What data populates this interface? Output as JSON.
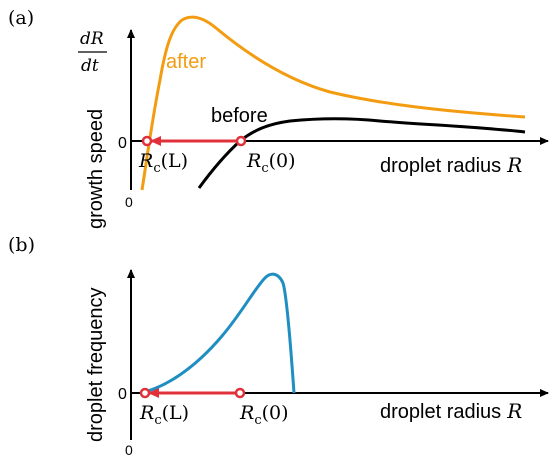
{
  "panels": [
    {
      "id": "a",
      "panel_label": "(a)",
      "ylabel": "growth speed",
      "ylabel_math_num": "dR",
      "ylabel_math_den": "dt",
      "xlabel": "droplet radius",
      "xlabel_symbol": "R",
      "zero_tick_y": "0",
      "zero_tick_x": "0",
      "curves": [
        {
          "name": "after",
          "color": "#F39C12"
        },
        {
          "name": "before",
          "color": "#000000"
        }
      ],
      "markers": [
        {
          "label": "R_c(L)",
          "text_main": "R",
          "text_sub": "c",
          "text_arg": "(L)"
        },
        {
          "label": "R_c(0)",
          "text_main": "R",
          "text_sub": "c",
          "text_arg": "(0)"
        }
      ],
      "arrow_color": "#E0313A"
    },
    {
      "id": "b",
      "panel_label": "(b)",
      "ylabel": "droplet frequency",
      "xlabel": "droplet radius",
      "xlabel_symbol": "R",
      "zero_tick_y": "0",
      "zero_tick_x": "0",
      "curves": [
        {
          "name": "",
          "color": "#1F8FC2"
        }
      ],
      "markers": [
        {
          "label": "R_c(L)",
          "text_main": "R",
          "text_sub": "c",
          "text_arg": "(L)"
        },
        {
          "label": "R_c(0)",
          "text_main": "R",
          "text_sub": "c",
          "text_arg": "(0)"
        }
      ],
      "arrow_color": "#E0313A"
    }
  ]
}
